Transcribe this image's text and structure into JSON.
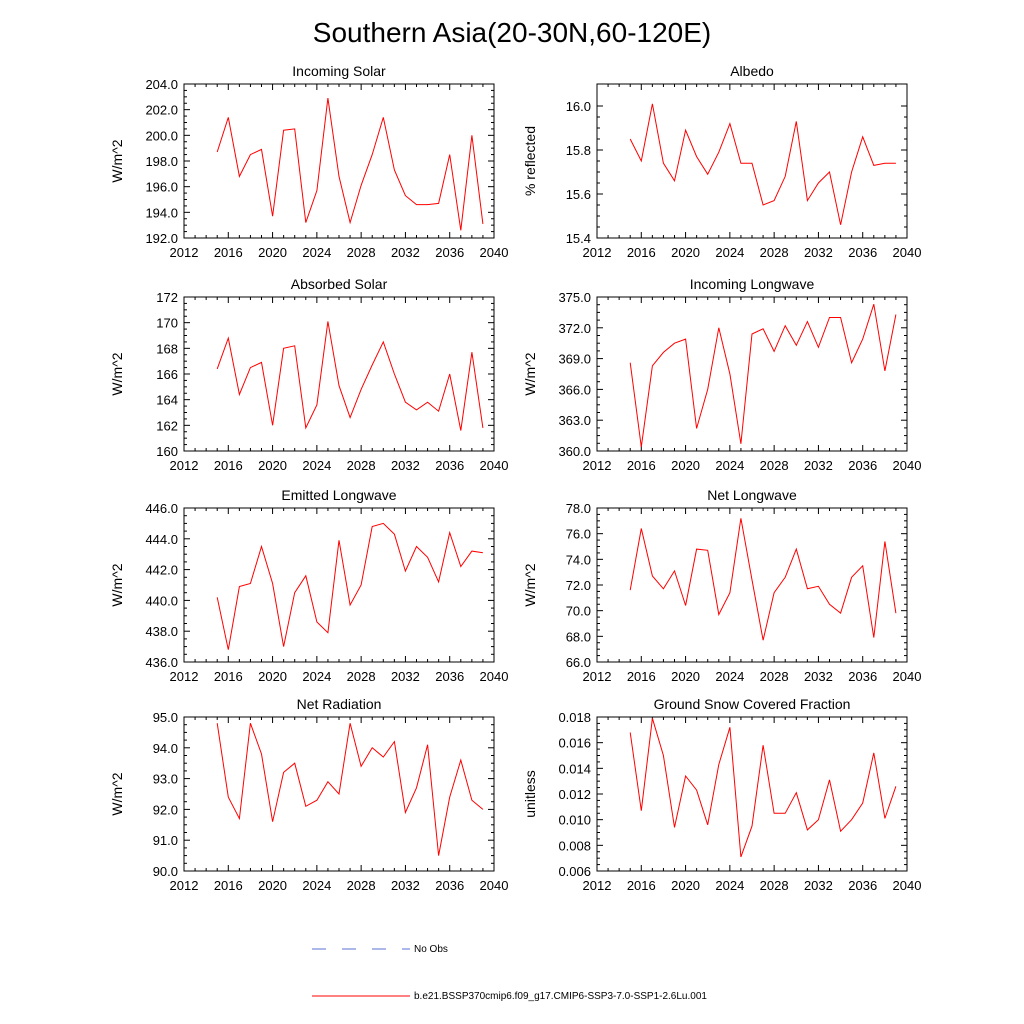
{
  "figure": {
    "title": "Southern Asia(20-30N,60-120E)",
    "series_color": "#ff0000",
    "obs_color": "#5a6fd6"
  },
  "legend": {
    "obs_label": "No Obs",
    "model_label": "b.e21.BSSP370cmip6.f09_g17.CMIP6-SSP3-7.0-SSP1-2.6Lu.001"
  },
  "chart_data": [
    {
      "type": "line",
      "title": "Incoming Solar",
      "ylabel": "W/m^2",
      "xlim": [
        2012,
        2040
      ],
      "ylim": [
        192,
        204
      ],
      "xticks": [
        2012,
        2016,
        2020,
        2024,
        2028,
        2032,
        2036,
        2040
      ],
      "xtick_labels": [
        "2012",
        "2016",
        "2020",
        "2024",
        "2028",
        "2032",
        "2036",
        "2040"
      ],
      "yticks": [
        192,
        194,
        196,
        198,
        200,
        202,
        204
      ],
      "ytick_labels": [
        "192.0",
        "194.0",
        "196.0",
        "198.0",
        "200.0",
        "202.0",
        "204.0"
      ],
      "x": [
        2015,
        2016,
        2017,
        2018,
        2019,
        2020,
        2021,
        2022,
        2023,
        2024,
        2025,
        2026,
        2027,
        2028,
        2029,
        2030,
        2031,
        2032,
        2033,
        2034,
        2035,
        2036,
        2037,
        2038,
        2039
      ],
      "series": [
        {
          "name": "b.e21.BSSP370cmip6.f09_g17.CMIP6-SSP3-7.0-SSP1-2.6Lu.001",
          "values": [
            198.7,
            201.4,
            196.8,
            198.5,
            198.9,
            193.7,
            200.4,
            200.5,
            193.2,
            195.7,
            202.9,
            196.8,
            193.2,
            196.1,
            198.5,
            201.4,
            197.3,
            195.3,
            194.6,
            194.6,
            194.7,
            198.5,
            192.6,
            200.0,
            193.1
          ]
        }
      ]
    },
    {
      "type": "line",
      "title": "Albedo",
      "ylabel": "% reflected",
      "xlim": [
        2012,
        2040
      ],
      "ylim": [
        15.4,
        16.1
      ],
      "xticks": [
        2012,
        2016,
        2020,
        2024,
        2028,
        2032,
        2036,
        2040
      ],
      "xtick_labels": [
        "2012",
        "2016",
        "2020",
        "2024",
        "2028",
        "2032",
        "2036",
        "2040"
      ],
      "yticks": [
        15.4,
        15.6,
        15.8,
        16.0
      ],
      "ytick_labels": [
        "15.4",
        "15.6",
        "15.8",
        "16.0"
      ],
      "x": [
        2015,
        2016,
        2017,
        2018,
        2019,
        2020,
        2021,
        2022,
        2023,
        2024,
        2025,
        2026,
        2027,
        2028,
        2029,
        2030,
        2031,
        2032,
        2033,
        2034,
        2035,
        2036,
        2037,
        2038,
        2039
      ],
      "series": [
        {
          "name": "b.e21.BSSP370cmip6.f09_g17.CMIP6-SSP3-7.0-SSP1-2.6Lu.001",
          "values": [
            15.85,
            15.75,
            16.01,
            15.74,
            15.66,
            15.89,
            15.77,
            15.69,
            15.79,
            15.92,
            15.74,
            15.74,
            15.55,
            15.57,
            15.68,
            15.93,
            15.57,
            15.65,
            15.7,
            15.46,
            15.7,
            15.86,
            15.73,
            15.74,
            15.74
          ]
        }
      ]
    },
    {
      "type": "line",
      "title": "Absorbed Solar",
      "ylabel": "W/m^2",
      "xlim": [
        2012,
        2040
      ],
      "ylim": [
        160,
        172
      ],
      "xticks": [
        2012,
        2016,
        2020,
        2024,
        2028,
        2032,
        2036,
        2040
      ],
      "xtick_labels": [
        "2012",
        "2016",
        "2020",
        "2024",
        "2028",
        "2032",
        "2036",
        "2040"
      ],
      "yticks": [
        160,
        162,
        164,
        166,
        168,
        170,
        172
      ],
      "ytick_labels": [
        "160",
        "162",
        "164",
        "166",
        "168",
        "170",
        "172"
      ],
      "x": [
        2015,
        2016,
        2017,
        2018,
        2019,
        2020,
        2021,
        2022,
        2023,
        2024,
        2025,
        2026,
        2027,
        2028,
        2029,
        2030,
        2031,
        2032,
        2033,
        2034,
        2035,
        2036,
        2037,
        2038,
        2039
      ],
      "series": [
        {
          "name": "b.e21.BSSP370cmip6.f09_g17.CMIP6-SSP3-7.0-SSP1-2.6Lu.001",
          "values": [
            166.4,
            168.8,
            164.4,
            166.5,
            166.9,
            162.0,
            168.0,
            168.2,
            161.8,
            163.6,
            170.1,
            165.1,
            162.6,
            164.8,
            166.7,
            168.5,
            166.0,
            163.8,
            163.2,
            163.8,
            163.1,
            166.0,
            161.6,
            167.7,
            161.8
          ]
        }
      ]
    },
    {
      "type": "line",
      "title": "Incoming Longwave",
      "ylabel": "W/m^2",
      "xlim": [
        2012,
        2040
      ],
      "ylim": [
        360,
        375
      ],
      "xticks": [
        2012,
        2016,
        2020,
        2024,
        2028,
        2032,
        2036,
        2040
      ],
      "xtick_labels": [
        "2012",
        "2016",
        "2020",
        "2024",
        "2028",
        "2032",
        "2036",
        "2040"
      ],
      "yticks": [
        360,
        363,
        366,
        369,
        372,
        375
      ],
      "ytick_labels": [
        "360.0",
        "363.0",
        "366.0",
        "369.0",
        "372.0",
        "375.0"
      ],
      "x": [
        2015,
        2016,
        2017,
        2018,
        2019,
        2020,
        2021,
        2022,
        2023,
        2024,
        2025,
        2026,
        2027,
        2028,
        2029,
        2030,
        2031,
        2032,
        2033,
        2034,
        2035,
        2036,
        2037,
        2038,
        2039
      ],
      "series": [
        {
          "name": "b.e21.BSSP370cmip6.f09_g17.CMIP6-SSP3-7.0-SSP1-2.6Lu.001",
          "values": [
            368.6,
            360.4,
            368.3,
            369.6,
            370.5,
            370.9,
            362.2,
            366.0,
            372.0,
            367.5,
            360.7,
            371.4,
            371.9,
            369.7,
            372.2,
            370.3,
            372.6,
            370.1,
            373.0,
            373.0,
            368.6,
            370.9,
            374.3,
            367.8,
            373.3
          ]
        }
      ]
    },
    {
      "type": "line",
      "title": "Emitted Longwave",
      "ylabel": "W/m^2",
      "xlim": [
        2012,
        2040
      ],
      "ylim": [
        436,
        446
      ],
      "xticks": [
        2012,
        2016,
        2020,
        2024,
        2028,
        2032,
        2036,
        2040
      ],
      "xtick_labels": [
        "2012",
        "2016",
        "2020",
        "2024",
        "2028",
        "2032",
        "2036",
        "2040"
      ],
      "yticks": [
        436,
        438,
        440,
        442,
        444,
        446
      ],
      "ytick_labels": [
        "436.0",
        "438.0",
        "440.0",
        "442.0",
        "444.0",
        "446.0"
      ],
      "x": [
        2015,
        2016,
        2017,
        2018,
        2019,
        2020,
        2021,
        2022,
        2023,
        2024,
        2025,
        2026,
        2027,
        2028,
        2029,
        2030,
        2031,
        2032,
        2033,
        2034,
        2035,
        2036,
        2037,
        2038,
        2039
      ],
      "series": [
        {
          "name": "b.e21.BSSP370cmip6.f09_g17.CMIP6-SSP3-7.0-SSP1-2.6Lu.001",
          "values": [
            440.2,
            436.8,
            440.9,
            441.1,
            443.5,
            441.1,
            437.0,
            440.5,
            441.6,
            438.6,
            437.9,
            443.9,
            439.7,
            441.0,
            444.8,
            445.0,
            444.3,
            441.9,
            443.5,
            442.8,
            441.2,
            444.4,
            442.2,
            443.2,
            443.1
          ]
        }
      ]
    },
    {
      "type": "line",
      "title": "Net Longwave",
      "ylabel": "W/m^2",
      "xlim": [
        2012,
        2040
      ],
      "ylim": [
        66,
        78
      ],
      "xticks": [
        2012,
        2016,
        2020,
        2024,
        2028,
        2032,
        2036,
        2040
      ],
      "xtick_labels": [
        "2012",
        "2016",
        "2020",
        "2024",
        "2028",
        "2032",
        "2036",
        "2040"
      ],
      "yticks": [
        66,
        68,
        70,
        72,
        74,
        76,
        78
      ],
      "ytick_labels": [
        "66.0",
        "68.0",
        "70.0",
        "72.0",
        "74.0",
        "76.0",
        "78.0"
      ],
      "x": [
        2015,
        2016,
        2017,
        2018,
        2019,
        2020,
        2021,
        2022,
        2023,
        2024,
        2025,
        2026,
        2027,
        2028,
        2029,
        2030,
        2031,
        2032,
        2033,
        2034,
        2035,
        2036,
        2037,
        2038,
        2039
      ],
      "series": [
        {
          "name": "b.e21.BSSP370cmip6.f09_g17.CMIP6-SSP3-7.0-SSP1-2.6Lu.001",
          "values": [
            71.6,
            76.4,
            72.7,
            71.7,
            73.1,
            70.4,
            74.8,
            74.7,
            69.7,
            71.4,
            77.2,
            72.4,
            67.7,
            71.4,
            72.6,
            74.8,
            71.7,
            71.9,
            70.5,
            69.8,
            72.6,
            73.5,
            67.9,
            75.4,
            69.8
          ]
        }
      ]
    },
    {
      "type": "line",
      "title": "Net Radiation",
      "ylabel": "W/m^2",
      "xlim": [
        2012,
        2040
      ],
      "ylim": [
        90,
        95
      ],
      "xticks": [
        2012,
        2016,
        2020,
        2024,
        2028,
        2032,
        2036,
        2040
      ],
      "xtick_labels": [
        "2012",
        "2016",
        "2020",
        "2024",
        "2028",
        "2032",
        "2036",
        "2040"
      ],
      "yticks": [
        90,
        91,
        92,
        93,
        94,
        95
      ],
      "ytick_labels": [
        "90.0",
        "91.0",
        "92.0",
        "93.0",
        "94.0",
        "95.0"
      ],
      "x": [
        2015,
        2016,
        2017,
        2018,
        2019,
        2020,
        2021,
        2022,
        2023,
        2024,
        2025,
        2026,
        2027,
        2028,
        2029,
        2030,
        2031,
        2032,
        2033,
        2034,
        2035,
        2036,
        2037,
        2038,
        2039
      ],
      "series": [
        {
          "name": "b.e21.BSSP370cmip6.f09_g17.CMIP6-SSP3-7.0-SSP1-2.6Lu.001",
          "values": [
            94.8,
            92.4,
            91.7,
            94.8,
            93.8,
            91.6,
            93.2,
            93.5,
            92.1,
            92.3,
            92.9,
            92.5,
            94.8,
            93.4,
            94.0,
            93.7,
            94.2,
            91.9,
            92.7,
            94.1,
            90.5,
            92.4,
            93.6,
            92.3,
            92.0
          ]
        }
      ]
    },
    {
      "type": "line",
      "title": "Ground Snow Covered Fraction",
      "ylabel": "unitless",
      "xlim": [
        2012,
        2040
      ],
      "ylim": [
        0.006,
        0.018
      ],
      "xticks": [
        2012,
        2016,
        2020,
        2024,
        2028,
        2032,
        2036,
        2040
      ],
      "xtick_labels": [
        "2012",
        "2016",
        "2020",
        "2024",
        "2028",
        "2032",
        "2036",
        "2040"
      ],
      "yticks": [
        0.006,
        0.008,
        0.01,
        0.012,
        0.014,
        0.016,
        0.018
      ],
      "ytick_labels": [
        "0.006",
        "0.008",
        "0.010",
        "0.012",
        "0.014",
        "0.016",
        "0.018"
      ],
      "x": [
        2015,
        2016,
        2017,
        2018,
        2019,
        2020,
        2021,
        2022,
        2023,
        2024,
        2025,
        2026,
        2027,
        2028,
        2029,
        2030,
        2031,
        2032,
        2033,
        2034,
        2035,
        2036,
        2037,
        2038,
        2039
      ],
      "series": [
        {
          "name": "b.e21.BSSP370cmip6.f09_g17.CMIP6-SSP3-7.0-SSP1-2.6Lu.001",
          "values": [
            0.0168,
            0.0107,
            0.0179,
            0.015,
            0.0094,
            0.0134,
            0.0123,
            0.0096,
            0.0143,
            0.0172,
            0.0071,
            0.0095,
            0.0158,
            0.0105,
            0.0105,
            0.0121,
            0.0092,
            0.01,
            0.0131,
            0.0091,
            0.01,
            0.0113,
            0.0152,
            0.0101,
            0.0126
          ]
        }
      ]
    }
  ]
}
